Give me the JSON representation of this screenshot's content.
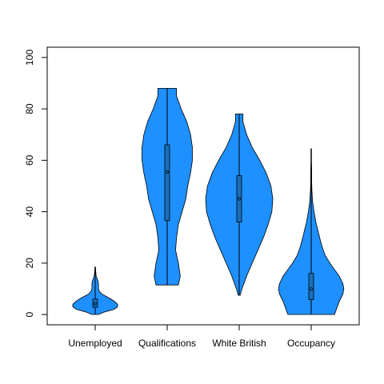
{
  "chart_data": {
    "type": "violin",
    "title": "",
    "xlabel": "",
    "ylabel": "",
    "ylim": [
      -4,
      104
    ],
    "yticks": [
      0,
      20,
      40,
      60,
      80,
      100
    ],
    "ytick_labels": [
      "0",
      "20",
      "40",
      "60",
      "80",
      "100"
    ],
    "categories": [
      "Unemployed",
      "Qualifications",
      "White British",
      "Occupancy"
    ],
    "colors": {
      "fill": "#1E90FF",
      "stroke": "#000000",
      "box": "#1A6FB8",
      "background": "#FFFFFF"
    },
    "series": [
      {
        "min": 0,
        "max": 18.5,
        "q1": 2.8,
        "median": 4.2,
        "q3": 6.0,
        "density": [
          [
            0,
            3.5
          ],
          [
            1,
            10
          ],
          [
            2,
            20
          ],
          [
            3,
            24
          ],
          [
            4,
            24
          ],
          [
            5,
            21
          ],
          [
            6,
            17
          ],
          [
            7,
            12
          ],
          [
            8,
            7
          ],
          [
            9,
            4.5
          ],
          [
            10,
            3.5
          ],
          [
            11,
            3.5
          ],
          [
            12,
            3.5
          ],
          [
            13,
            3
          ],
          [
            14,
            2
          ],
          [
            15,
            1
          ],
          [
            16,
            0.8
          ],
          [
            17,
            0.5
          ],
          [
            18.5,
            0.3
          ]
        ]
      },
      {
        "min": 11.5,
        "max": 88,
        "q1": 36.5,
        "median": 55.5,
        "q3": 66.0,
        "density": [
          [
            11.5,
            12
          ],
          [
            15,
            14
          ],
          [
            20,
            12
          ],
          [
            25,
            9
          ],
          [
            30,
            10
          ],
          [
            35,
            12
          ],
          [
            40,
            16
          ],
          [
            45,
            20
          ],
          [
            50,
            22
          ],
          [
            55,
            25
          ],
          [
            60,
            27
          ],
          [
            65,
            27
          ],
          [
            70,
            25
          ],
          [
            75,
            21
          ],
          [
            80,
            15
          ],
          [
            85,
            10
          ],
          [
            88,
            10
          ]
        ]
      },
      {
        "min": 7.5,
        "max": 78,
        "q1": 36.0,
        "median": 45.0,
        "q3": 54.0,
        "density": [
          [
            7.5,
            1
          ],
          [
            10,
            3
          ],
          [
            15,
            8
          ],
          [
            20,
            14
          ],
          [
            25,
            20
          ],
          [
            30,
            26
          ],
          [
            35,
            31
          ],
          [
            40,
            35
          ],
          [
            45,
            36
          ],
          [
            50,
            34
          ],
          [
            55,
            29
          ],
          [
            60,
            22
          ],
          [
            65,
            14
          ],
          [
            70,
            8
          ],
          [
            75,
            4
          ],
          [
            78,
            4
          ]
        ]
      },
      {
        "min": 0,
        "max": 64.5,
        "q1": 5.8,
        "median": 10.0,
        "q3": 16.0,
        "density": [
          [
            0,
            25
          ],
          [
            2,
            27
          ],
          [
            5,
            30
          ],
          [
            8,
            34
          ],
          [
            10,
            35
          ],
          [
            12,
            34
          ],
          [
            15,
            30
          ],
          [
            18,
            24
          ],
          [
            20,
            20
          ],
          [
            23,
            15
          ],
          [
            26,
            12
          ],
          [
            30,
            9
          ],
          [
            33,
            7
          ],
          [
            36,
            5
          ],
          [
            40,
            3
          ],
          [
            44,
            1.5
          ],
          [
            48,
            0.8
          ],
          [
            52,
            0.5
          ],
          [
            56,
            0.5
          ],
          [
            60,
            0.3
          ],
          [
            64.5,
            0.3
          ]
        ]
      }
    ]
  }
}
